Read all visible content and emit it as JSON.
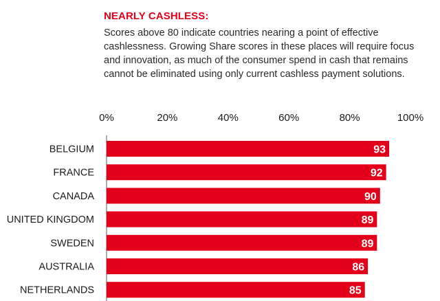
{
  "header": {
    "title": "NEARLY CASHLESS:",
    "description": "Scores above 80 indicate countries nearing a point of effective cashlessness. Growing Share scores in these places will require focus and innovation, as much of the consumer spend in cash that remains cannot be eliminated using only current cashless payment solutions."
  },
  "colors": {
    "bar": "#e3001b",
    "title": "#e3001b",
    "label": "#1a1a1a",
    "value": "#ffffff"
  },
  "chart_data": {
    "type": "bar",
    "orientation": "horizontal",
    "categories": [
      "BELGIUM",
      "FRANCE",
      "CANADA",
      "UNITED KINGDOM",
      "SWEDEN",
      "AUSTRALIA",
      "NETHERLANDS"
    ],
    "values": [
      93,
      92,
      90,
      89,
      89,
      86,
      85
    ],
    "value_labels": [
      "93",
      "92",
      "90",
      "89",
      "89",
      "86",
      "85"
    ],
    "x_ticks": [
      "0%",
      "20%",
      "40%",
      "60%",
      "80%",
      "100%"
    ],
    "xlim": [
      0,
      100
    ],
    "axis_position": "top",
    "grid": false
  }
}
